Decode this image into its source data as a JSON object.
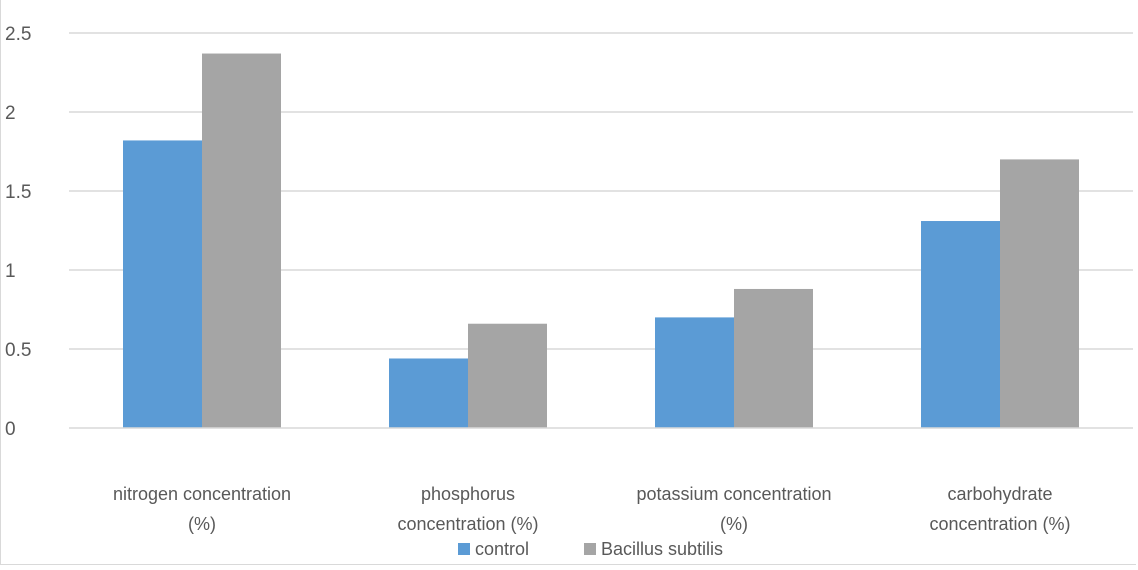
{
  "chart_data": {
    "type": "bar",
    "title": "",
    "xlabel": "",
    "ylabel": "",
    "categories": [
      [
        "nitrogen concentration",
        "(%)"
      ],
      [
        "phosphorus",
        "concentration (%)"
      ],
      [
        "potassium concentration",
        "(%)"
      ],
      [
        "carbohydrate",
        "concentration (%)"
      ]
    ],
    "series": [
      {
        "name": "control",
        "color": "#5b9bd5",
        "values": [
          1.82,
          0.44,
          0.7,
          1.31
        ]
      },
      {
        "name": "Bacillus subtilis",
        "color": "#a5a5a5",
        "values": [
          2.37,
          0.66,
          0.88,
          1.7
        ]
      }
    ],
    "ylim": [
      0,
      2.5
    ],
    "yticks": [
      "0",
      "0.5",
      "1",
      "1.5",
      "2",
      "2.5"
    ],
    "grid": true,
    "legend_position": "bottom"
  }
}
